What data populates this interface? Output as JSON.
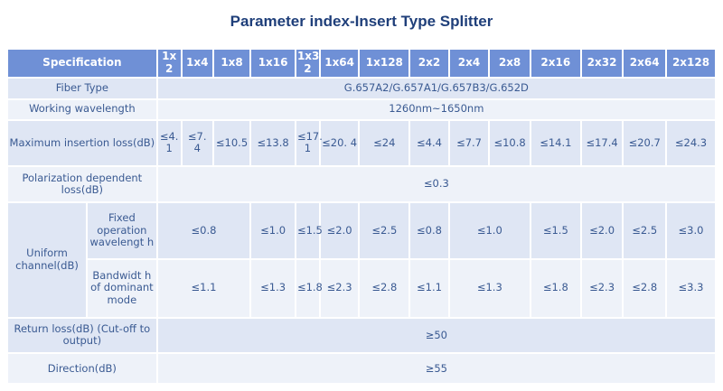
{
  "title": "Parameter index-Insert Type Splitter",
  "header": [
    "Specification",
    "1x 2",
    "1x4",
    "1x8",
    "1x16",
    "1x3 2",
    "1x64",
    "1x128",
    "2x2",
    "2x4",
    "2x8",
    "2x16",
    "2x32",
    "2x64",
    "2x128"
  ],
  "rows": {
    "fiber_type": {
      "label": "Fiber Type",
      "value": "G.657A2/G.657A1/G.657B3/G.652D"
    },
    "working_wavelength": {
      "label": "Working wavelength",
      "value": "1260nm~1650nm"
    },
    "max_insertion_loss": {
      "label": "Maximum insertion loss(dB)",
      "values": [
        "≤4. 1",
        "≤7. 4",
        "≤10.5",
        "≤13.8",
        "≤17. 1",
        "≤20. 4",
        "≤24",
        "≤4.4",
        "≤7.7",
        "≤10.8",
        "≤14.1",
        "≤17.4",
        "≤20.7",
        "≤24.3"
      ]
    },
    "pdl": {
      "label": "Polarization dependent loss(dB)",
      "value": "≤0.3"
    },
    "uniform": {
      "label": "Uniform channel(dB)",
      "fixed": {
        "label": "Fixed operation wavelengt h",
        "v1": "≤0.8",
        "v2": "≤1.0",
        "v3": "≤1.5",
        "v4": "≤2.0",
        "v5": "≤2.5",
        "v6": "≤0.8",
        "v7": "≤1.0",
        "v8": "≤1.5",
        "v9": "≤2.0",
        "v10": "≤2.5",
        "v11": "≤3.0"
      },
      "bandwidth": {
        "label": "Bandwidt h of dominant mode",
        "v1": "≤1.1",
        "v2": "≤1.3",
        "v3": "≤1.8",
        "v4": "≤2.3",
        "v5": "≤2.8",
        "v6": "≤1.1",
        "v7": "≤1.3",
        "v8": "≤1.8",
        "v9": "≤2.3",
        "v10": "≤2.8",
        "v11": "≤3.3"
      }
    },
    "return_loss": {
      "label": "Return loss(dB) (Cut-off to output)",
      "value": "≥50"
    },
    "direction": {
      "label": "Direction(dB)",
      "value": "≥55"
    }
  }
}
